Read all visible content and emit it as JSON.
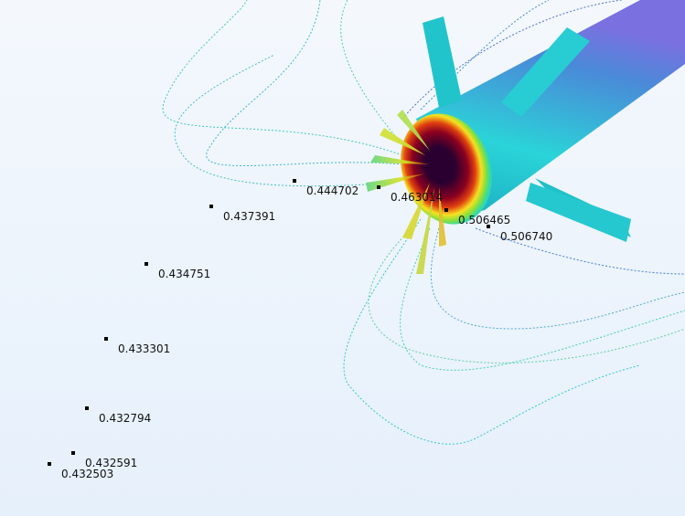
{
  "viewport": {
    "annotations": [
      {
        "value": "0.444702"
      },
      {
        "value": "0.463014"
      },
      {
        "value": "0.437391"
      },
      {
        "value": "0.506465"
      },
      {
        "value": "0.506740"
      },
      {
        "value": "0.434751"
      },
      {
        "value": "0.433301"
      },
      {
        "value": "0.432794"
      },
      {
        "value": "0.432591"
      },
      {
        "value": "0.432503"
      }
    ],
    "colors": {
      "background": "#eef4fc",
      "body": "#22c8d0",
      "hot": "#3a0030",
      "streamline": "#3cc8b8"
    }
  }
}
